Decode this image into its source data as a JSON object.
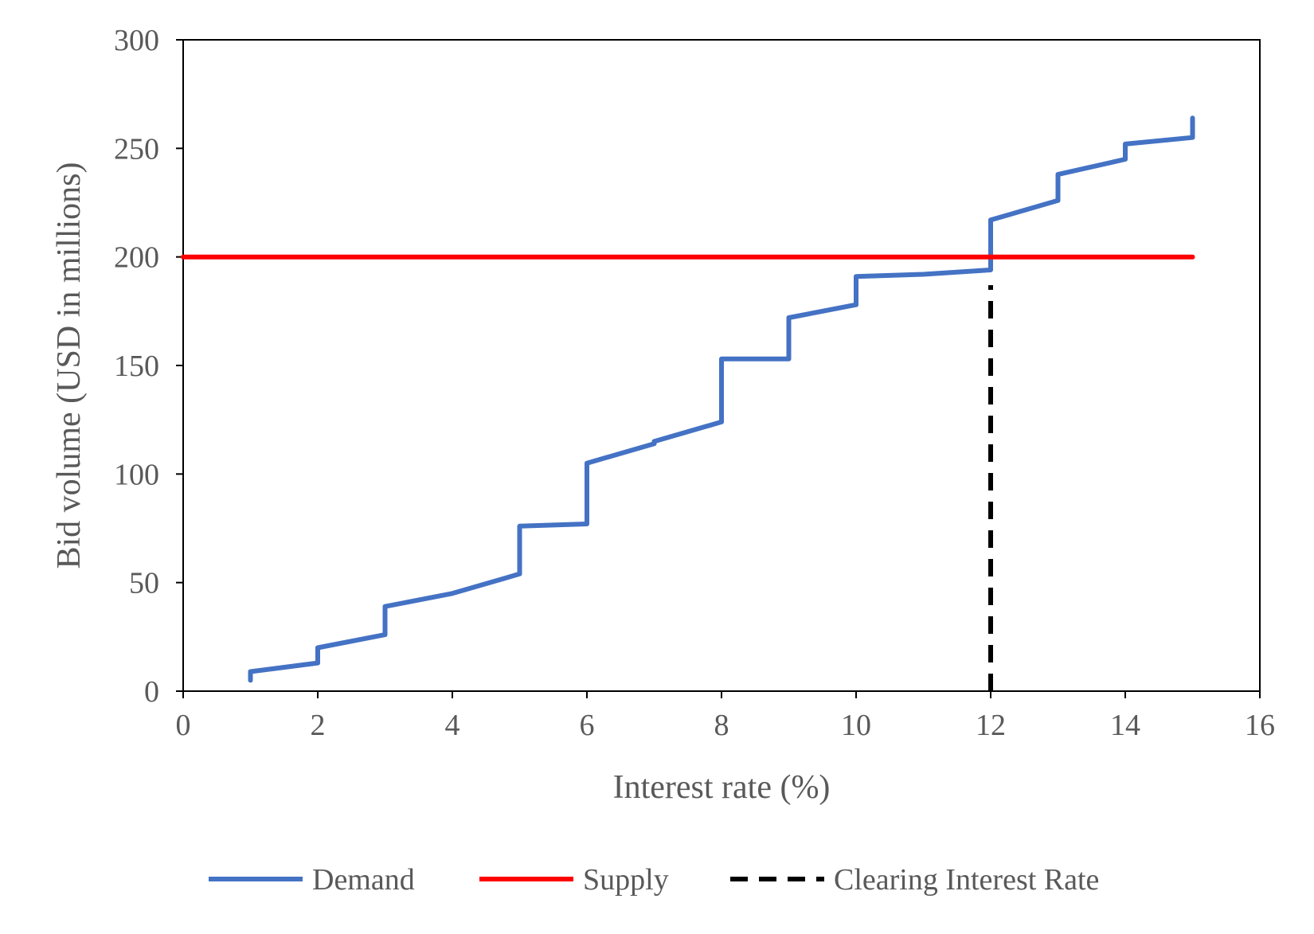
{
  "chart_data": {
    "type": "line",
    "title": "",
    "xlabel": "Interest rate (%)",
    "ylabel": "Bid volume (USD in millions)",
    "xlim": [
      0,
      16
    ],
    "ylim": [
      0,
      300
    ],
    "xticks": [
      0,
      2,
      4,
      6,
      8,
      10,
      12,
      14,
      16
    ],
    "yticks": [
      0,
      50,
      100,
      150,
      200,
      250,
      300
    ],
    "grid": false,
    "legend_position": "bottom",
    "series": [
      {
        "name": "Demand",
        "color": "#4472C4",
        "style": "solid",
        "x": [
          1,
          1,
          2,
          2,
          3,
          3,
          4,
          5,
          5,
          6,
          6,
          7,
          7,
          8,
          8,
          9,
          9,
          10,
          10,
          11,
          12,
          12,
          13,
          13,
          14,
          14,
          15,
          15
        ],
        "y": [
          5,
          9,
          13,
          20,
          26,
          39,
          45,
          54,
          76,
          77,
          105,
          114,
          115,
          124,
          153,
          153,
          172,
          178,
          191,
          192,
          194,
          217,
          226,
          238,
          245,
          252,
          255,
          264
        ]
      },
      {
        "name": "Supply",
        "color": "#FF0000",
        "style": "solid",
        "x": [
          0,
          15
        ],
        "y": [
          200,
          200
        ]
      },
      {
        "name": "Clearing Interest Rate",
        "color": "#000000",
        "style": "dashed",
        "x": [
          12,
          12
        ],
        "y": [
          0,
          187
        ]
      }
    ]
  }
}
